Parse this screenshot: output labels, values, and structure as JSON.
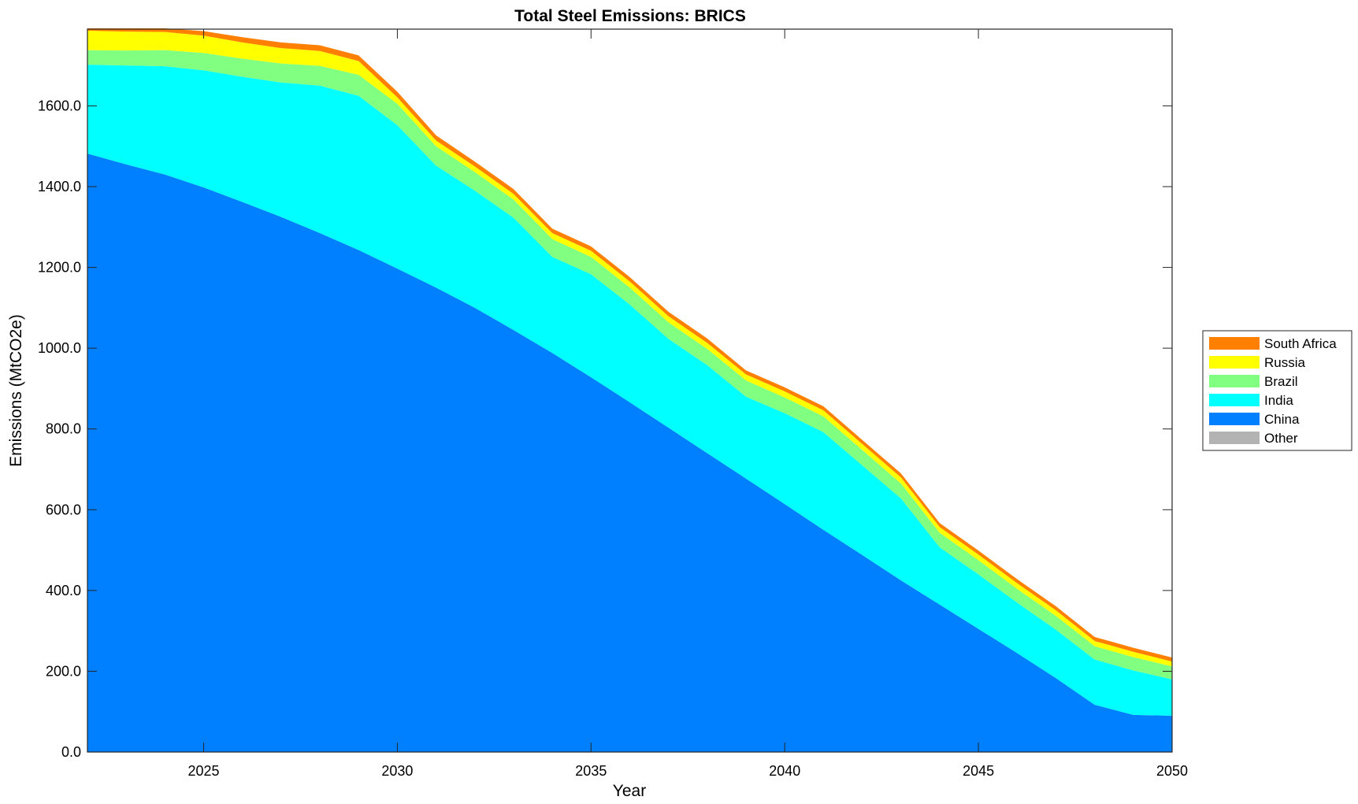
{
  "chart_data": {
    "type": "area",
    "stacked": true,
    "title": "Total Steel Emissions: BRICS",
    "xlabel": "Year",
    "ylabel": "Emissions (MtCO2e)",
    "xlim": [
      2022,
      2050
    ],
    "ylim": [
      0,
      1790
    ],
    "x_ticks": [
      2025,
      2030,
      2035,
      2040,
      2045,
      2050
    ],
    "x_tick_labels": [
      "2025",
      "2030",
      "2035",
      "2040",
      "2045",
      "2050"
    ],
    "y_ticks": [
      0,
      200,
      400,
      600,
      800,
      1000,
      1200,
      1400,
      1600
    ],
    "y_tick_labels": [
      "0.0",
      "200.0",
      "400.0",
      "600.0",
      "800.0",
      "1000.0",
      "1200.0",
      "1400.0",
      "1600.0"
    ],
    "grid": false,
    "legend_position": "outside-right",
    "legend_order": [
      "South Africa",
      "Russia",
      "Brazil",
      "India",
      "China",
      "Other"
    ],
    "x": [
      2022,
      2023,
      2024,
      2025,
      2026,
      2027,
      2028,
      2029,
      2030,
      2031,
      2032,
      2033,
      2034,
      2035,
      2036,
      2037,
      2038,
      2039,
      2040,
      2041,
      2042,
      2043,
      2044,
      2045,
      2046,
      2047,
      2048,
      2049,
      2050
    ],
    "series": [
      {
        "name": "Other",
        "color": "#b3b3b3",
        "values": [
          0,
          0,
          0,
          0,
          0,
          0,
          0,
          0,
          0,
          0,
          0,
          0,
          0,
          0,
          0,
          0,
          0,
          0,
          0,
          0,
          0,
          0,
          0,
          0,
          0,
          0,
          0,
          0,
          0
        ]
      },
      {
        "name": "China",
        "color": "#0080ff",
        "values": [
          1482,
          1455,
          1430,
          1398,
          1362,
          1325,
          1285,
          1243,
          1197,
          1150,
          1100,
          1045,
          988,
          928,
          866,
          803,
          740,
          677,
          614,
          550,
          488,
          425,
          365,
          305,
          245,
          183,
          117,
          92,
          90
        ]
      },
      {
        "name": "India",
        "color": "#00ffff",
        "values": [
          220,
          245,
          268,
          290,
          310,
          333,
          365,
          382,
          355,
          302,
          290,
          278,
          238,
          255,
          242,
          220,
          218,
          203,
          225,
          242,
          222,
          203,
          142,
          135,
          125,
          120,
          112,
          110,
          90
        ]
      },
      {
        "name": "Brazil",
        "color": "#80ff80",
        "values": [
          36,
          37,
          40,
          43,
          45,
          47,
          49,
          52,
          53,
          48,
          46,
          45,
          44,
          43,
          42,
          41,
          40,
          40,
          39,
          39,
          38,
          37,
          36,
          35,
          34,
          34,
          33,
          33,
          32
        ]
      },
      {
        "name": "Russia",
        "color": "#ffff00",
        "values": [
          48,
          47,
          45,
          43,
          40,
          38,
          37,
          34,
          16,
          14,
          14,
          14,
          15,
          15,
          15,
          15,
          15,
          15,
          15,
          15,
          15,
          15,
          14,
          14,
          14,
          14,
          13,
          13,
          12
        ]
      },
      {
        "name": "South Africa",
        "color": "#ff8000",
        "values": [
          6,
          8,
          9,
          11,
          13,
          14,
          14,
          14,
          14,
          13,
          12,
          12,
          11,
          11,
          11,
          11,
          11,
          10,
          10,
          10,
          10,
          10,
          10,
          10,
          10,
          10,
          10,
          10,
          10
        ]
      }
    ]
  }
}
